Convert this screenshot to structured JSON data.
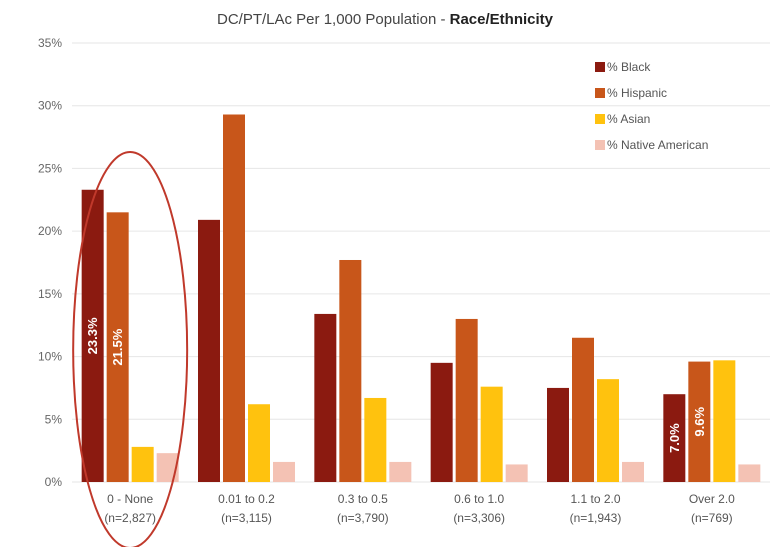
{
  "chart_data": {
    "type": "bar",
    "title": "DC/PT/LAc Per 1,000 Population - ",
    "title_bold": "Race/Ethnicity",
    "xlabel": "",
    "ylabel": "",
    "ylim": [
      0,
      35
    ],
    "y_tick_labels": [
      "0%",
      "5%",
      "10%",
      "15%",
      "20%",
      "25%",
      "30%",
      "35%"
    ],
    "grid": true,
    "legend_position": "top-right",
    "categories": [
      {
        "line1": "0 - None",
        "line2": "(n=2,827)"
      },
      {
        "line1": "0.01 to 0.2",
        "line2": "(n=3,115)"
      },
      {
        "line1": "0.3 to 0.5",
        "line2": "(n=3,790)"
      },
      {
        "line1": "0.6 to 1.0",
        "line2": "(n=3,306)"
      },
      {
        "line1": "1.1 to 2.0",
        "line2": "(n=1,943)"
      },
      {
        "line1": "Over 2.0",
        "line2": "(n=769)"
      }
    ],
    "series": [
      {
        "name": "% Black",
        "color": "#8b1a10",
        "values": [
          23.3,
          20.9,
          13.4,
          9.5,
          7.5,
          7.0
        ]
      },
      {
        "name": "% Hispanic",
        "color": "#c8561a",
        "values": [
          21.5,
          29.3,
          17.7,
          13.0,
          11.5,
          9.6
        ]
      },
      {
        "name": "% Asian",
        "color": "#ffc20e",
        "values": [
          2.8,
          6.2,
          6.7,
          7.6,
          8.2,
          9.7
        ]
      },
      {
        "name": "% Native American",
        "color": "#f4c2b4",
        "values": [
          2.3,
          1.6,
          1.6,
          1.4,
          1.6,
          1.4
        ]
      }
    ],
    "data_labels": [
      {
        "series": 0,
        "category": 0,
        "text": "23.3%"
      },
      {
        "series": 1,
        "category": 0,
        "text": "21.5%"
      },
      {
        "series": 0,
        "category": 5,
        "text": "7.0%"
      },
      {
        "series": 1,
        "category": 5,
        "text": "9.6%"
      }
    ],
    "annotation": {
      "type": "ellipse",
      "category": 0,
      "color": "#c0392b"
    }
  }
}
